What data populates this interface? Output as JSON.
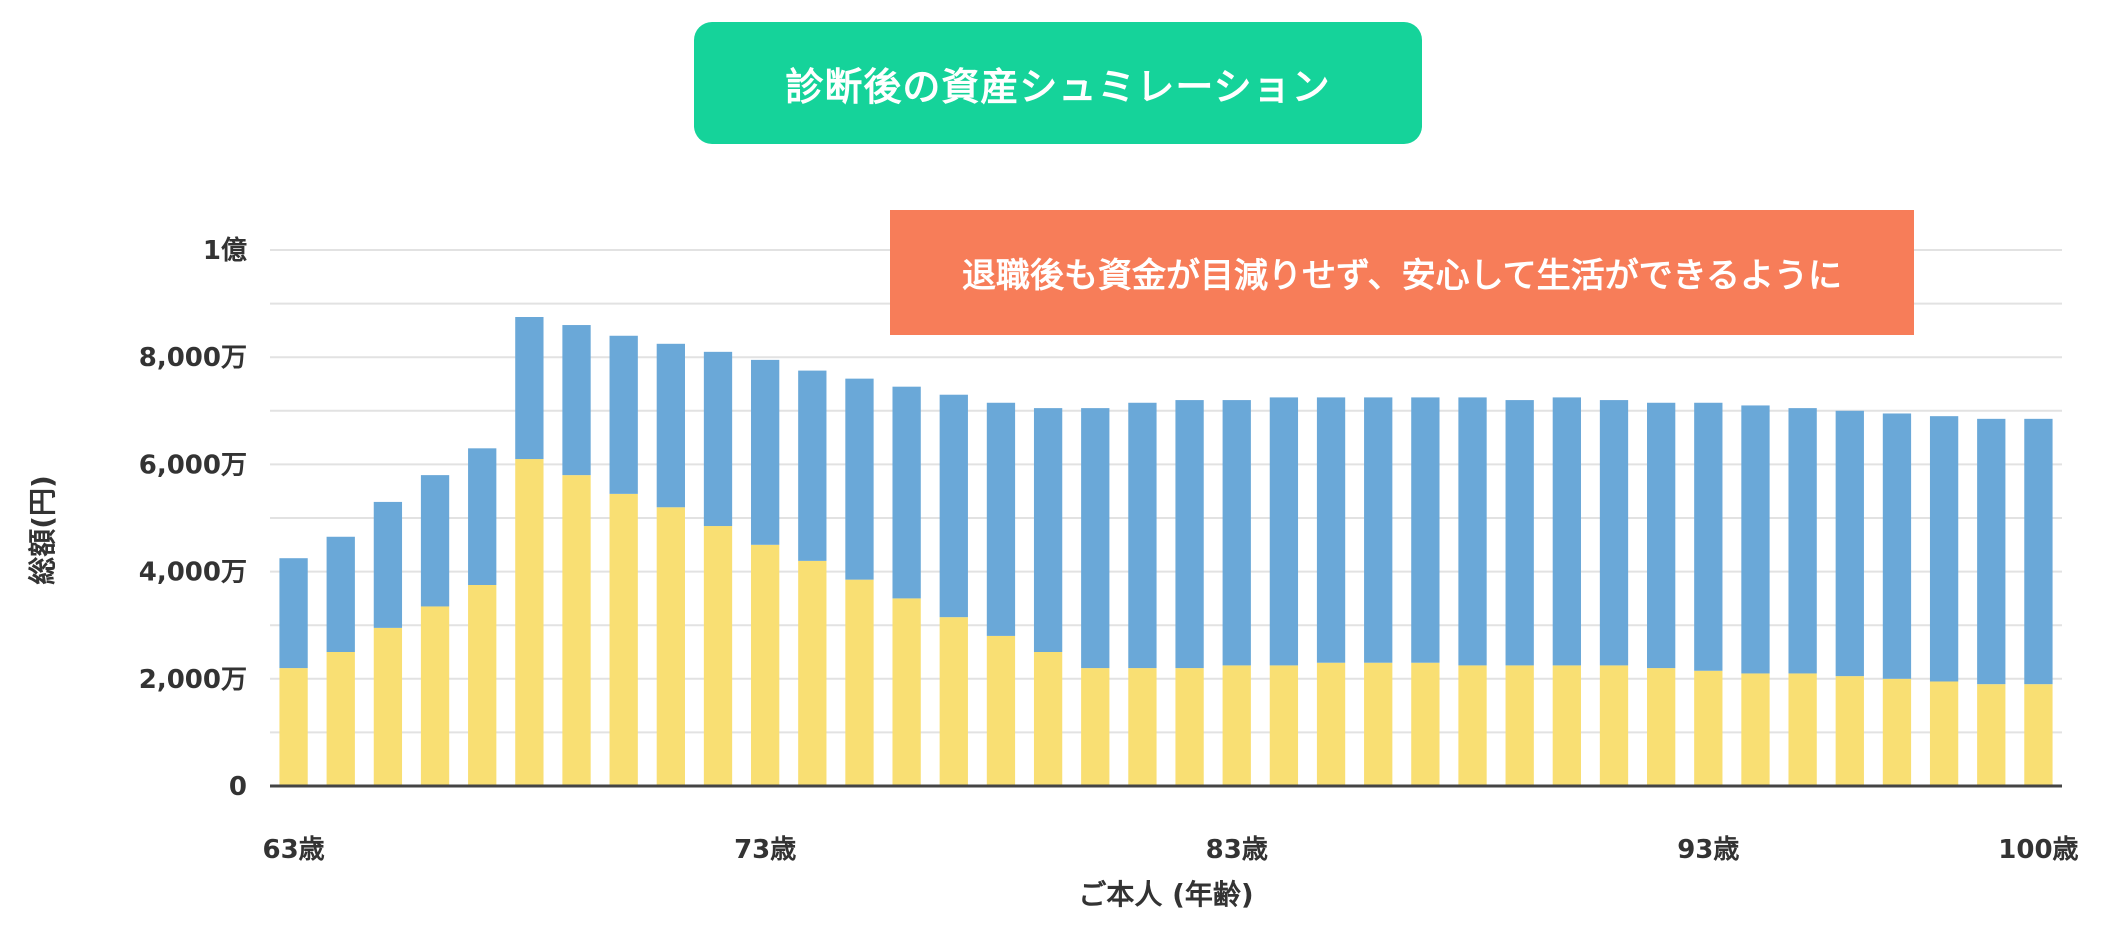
{
  "header": {
    "title": "診断後の資産シュミレーション"
  },
  "callout": {
    "text": "退職後も資金が目減りせず、安心して生活ができるように"
  },
  "chart_data": {
    "type": "bar",
    "stacked": true,
    "title": "",
    "xlabel": "ご本人 (年齢)",
    "ylabel": "総額(円)",
    "ylim": [
      0,
      10000
    ],
    "y_ticks": [
      {
        "value": 0,
        "label": "0"
      },
      {
        "value": 2000,
        "label": "2,000万"
      },
      {
        "value": 4000,
        "label": "4,000万"
      },
      {
        "value": 6000,
        "label": "6,000万"
      },
      {
        "value": 8000,
        "label": "8,000万"
      },
      {
        "value": 10000,
        "label": "1億"
      }
    ],
    "x_tick_labels": [
      {
        "index": 0,
        "label": "63歳"
      },
      {
        "index": 10,
        "label": "73歳"
      },
      {
        "index": 20,
        "label": "83歳"
      },
      {
        "index": 30,
        "label": "93歳"
      },
      {
        "index": 37,
        "label": "100歳"
      }
    ],
    "categories": [
      "63",
      "64",
      "65",
      "66",
      "67",
      "68",
      "69",
      "70",
      "71",
      "72",
      "73",
      "74",
      "75",
      "76",
      "77",
      "78",
      "79",
      "80",
      "81",
      "82",
      "83",
      "84",
      "85",
      "86",
      "87",
      "88",
      "89",
      "90",
      "91",
      "92",
      "93",
      "94",
      "95",
      "96",
      "97",
      "98",
      "99",
      "100"
    ],
    "series": [
      {
        "color": "#f9df73",
        "values": [
          2200,
          2500,
          2950,
          3350,
          3750,
          6100,
          5800,
          5450,
          5200,
          4850,
          4500,
          4200,
          3850,
          3500,
          3150,
          2800,
          2500,
          2200,
          2200,
          2200,
          2250,
          2250,
          2300,
          2300,
          2300,
          2250,
          2250,
          2250,
          2250,
          2200,
          2150,
          2100,
          2100,
          2050,
          2000,
          1950,
          1900,
          1900
        ]
      },
      {
        "color": "#6aa8d8",
        "values": [
          2050,
          2150,
          2350,
          2450,
          2550,
          2650,
          2800,
          2950,
          3050,
          3250,
          3450,
          3550,
          3750,
          3950,
          4150,
          4350,
          4550,
          4850,
          4950,
          5000,
          4950,
          5000,
          4950,
          4950,
          4950,
          5000,
          4950,
          5000,
          4950,
          4950,
          5000,
          5000,
          4950,
          4950,
          4950,
          4950,
          4950,
          4950
        ]
      }
    ],
    "grid": true
  }
}
